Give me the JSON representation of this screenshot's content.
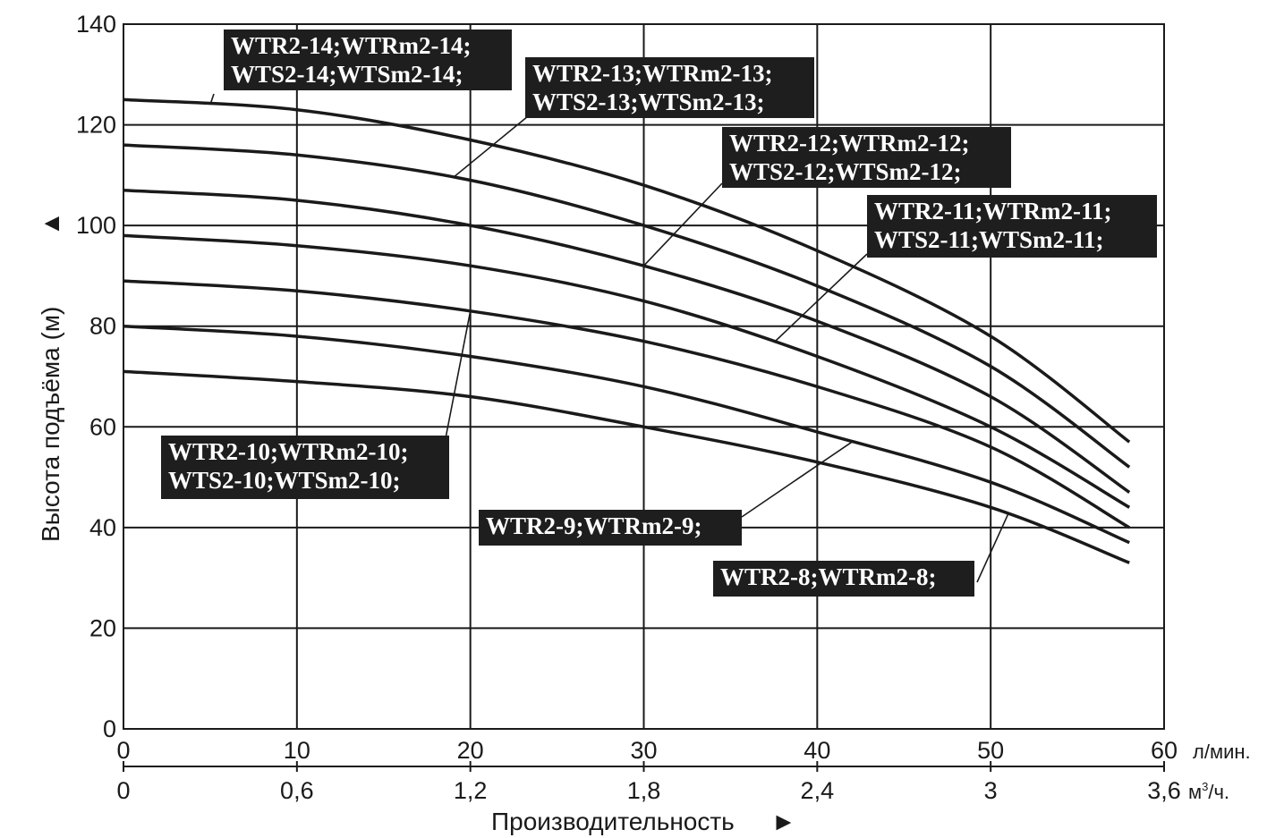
{
  "chart_data": {
    "type": "line",
    "title": "",
    "ylabel": "Высота подъёма (м)",
    "ylabel_arrow": "▲",
    "xlabel": "Производительность",
    "xlabel_arrow": "►",
    "xlim": [
      0,
      60
    ],
    "ylim": [
      0,
      140
    ],
    "grid": true,
    "x_ticks": [
      "0",
      "10",
      "20",
      "30",
      "40",
      "50",
      "60"
    ],
    "x_unit": "л/мин.",
    "x2_ticks": [
      "0",
      "0,6",
      "1,2",
      "1,8",
      "2,4",
      "3",
      "3,6"
    ],
    "x2_unit_base": "м",
    "x2_unit_sup": "3",
    "x2_unit_tail": "/ч.",
    "y_ticks": [
      "0",
      "20",
      "40",
      "60",
      "80",
      "100",
      "120",
      "140"
    ],
    "x": [
      0,
      10,
      20,
      30,
      40,
      50,
      58
    ],
    "series": [
      {
        "name": "WTR2-14",
        "values": [
          125,
          123,
          117,
          108,
          95,
          78,
          57
        ]
      },
      {
        "name": "WTR2-13",
        "values": [
          116,
          114,
          109,
          100,
          88,
          72,
          52
        ]
      },
      {
        "name": "WTR2-12",
        "values": [
          107,
          105,
          100,
          92,
          81,
          66,
          47
        ]
      },
      {
        "name": "WTR2-11",
        "values": [
          98,
          96,
          92,
          85,
          74,
          60,
          44
        ]
      },
      {
        "name": "WTR2-10",
        "values": [
          89,
          87,
          83,
          77,
          68,
          56,
          40
        ]
      },
      {
        "name": "WTR2-9",
        "values": [
          80,
          78,
          74,
          68,
          59,
          49,
          37
        ]
      },
      {
        "name": "WTR2-8",
        "values": [
          71,
          69,
          66,
          60,
          53,
          44,
          33
        ]
      }
    ],
    "annotations": [
      {
        "lines": [
          "WTR2-14;WTRm2-14;",
          "WTS2-14;WTSm2-14;"
        ],
        "series": "WTR2-14",
        "anchor_x": 5
      },
      {
        "lines": [
          "WTR2-13;WTRm2-13;",
          "WTS2-13;WTSm2-13;"
        ],
        "series": "WTR2-13",
        "anchor_x": 19
      },
      {
        "lines": [
          "WTR2-12;WTRm2-12;",
          "WTS2-12;WTSm2-12;"
        ],
        "series": "WTR2-12",
        "anchor_x": 30
      },
      {
        "lines": [
          "WTR2-11;WTRm2-11;",
          "WTS2-11;WTSm2-11;"
        ],
        "series": "WTR2-11",
        "anchor_x": 37.5
      },
      {
        "lines": [
          "WTR2-10;WTRm2-10;",
          "WTS2-10;WTSm2-10;"
        ],
        "series": "WTR2-10",
        "anchor_x": 20
      },
      {
        "lines": [
          "WTR2-9;WTRm2-9;"
        ],
        "series": "WTR2-9",
        "anchor_x": 42
      },
      {
        "lines": [
          "WTR2-8;WTRm2-8;"
        ],
        "series": "WTR2-8",
        "anchor_x": 51
      }
    ]
  }
}
